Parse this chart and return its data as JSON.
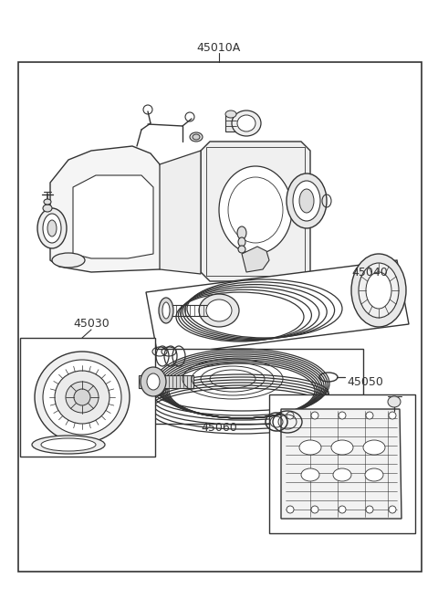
{
  "bg_color": "#ffffff",
  "line_color": "#333333",
  "text_color": "#333333",
  "label_45010A": "45010A",
  "label_45040": "45040",
  "label_45030": "45030",
  "label_45050": "45050",
  "label_45060": "45060",
  "fig_width": 4.8,
  "fig_height": 6.56,
  "dpi": 100
}
